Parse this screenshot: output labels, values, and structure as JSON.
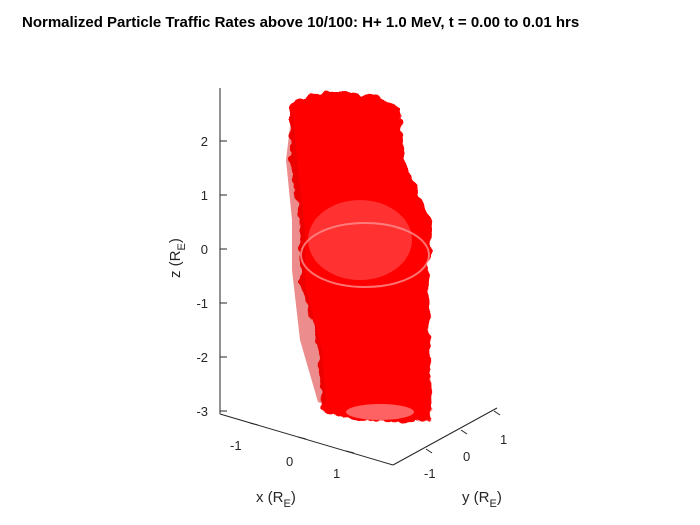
{
  "chart_data": {
    "type": "3d-isosurface",
    "title": "Normalized Particle Traffic Rates above 10/100: H+ 1.0 MeV, t = 0.00 to 0.01 hrs",
    "xlabel": {
      "main": "x (R",
      "sub": "E",
      "close": ")"
    },
    "ylabel": {
      "main": "y (R",
      "sub": "E",
      "close": ")"
    },
    "zlabel": {
      "main": "z (R",
      "sub": "E",
      "close": ")"
    },
    "x_ticks": [
      "-1",
      "0",
      "1"
    ],
    "y_ticks": [
      "-1",
      "0",
      "1"
    ],
    "z_ticks": [
      "2",
      "1",
      "0",
      "-1",
      "-2",
      "-3"
    ],
    "z_tick_values": [
      2,
      1,
      0,
      -1,
      -2,
      -3
    ],
    "surface_color": "#ff0000"
  }
}
